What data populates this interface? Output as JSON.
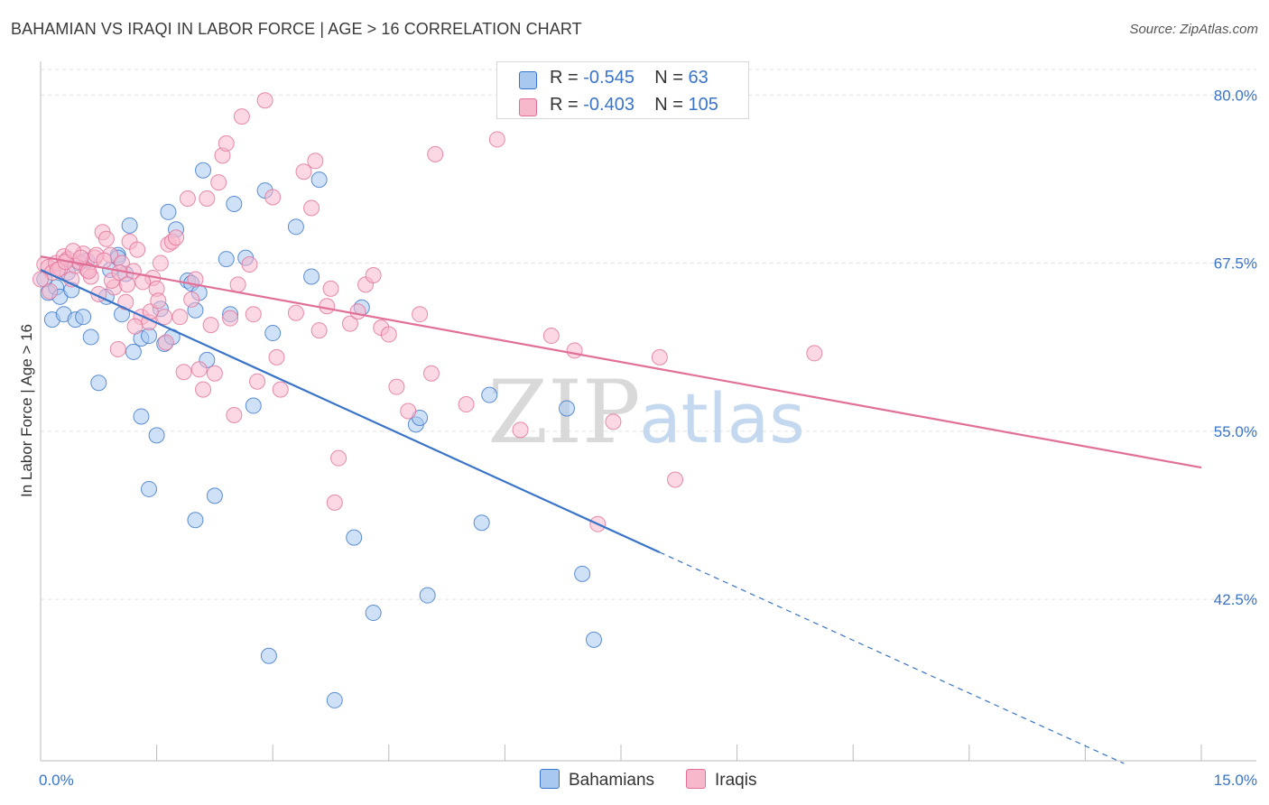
{
  "title": "BAHAMIAN VS IRAQI IN LABOR FORCE | AGE > 16 CORRELATION CHART",
  "source": "Source: ZipAtlas.com",
  "watermark": {
    "zip": "ZIP",
    "atlas": "atlas"
  },
  "legend": {
    "rows": [
      {
        "r_label": "R = ",
        "r_value": "-0.545",
        "n_label": "N = ",
        "n_value": "63",
        "color": "#a8c8f0"
      },
      {
        "r_label": "R = ",
        "r_value": "-0.403",
        "n_label": "N = ",
        "n_value": "105",
        "color": "#f8b8cc"
      }
    ]
  },
  "bottom_legend": [
    "Bahamians",
    "Iraqis"
  ],
  "chart_data": {
    "type": "scatter",
    "title": "BAHAMIAN VS IRAQI IN LABOR FORCE | AGE > 16 CORRELATION CHART",
    "xlabel": "",
    "ylabel": "In Labor Force | Age > 16",
    "xlim": [
      0,
      15
    ],
    "ylim": [
      30.5,
      82.5
    ],
    "x_tick_labels": [
      "0.0%",
      "15.0%"
    ],
    "y_ticks": [
      42.5,
      55.0,
      67.5,
      80.0
    ],
    "y_tick_labels": [
      "42.5%",
      "55.0%",
      "67.5%",
      "80.0%"
    ],
    "grid": true,
    "series": [
      {
        "name": "Bahamians",
        "color": "#a8c8f0",
        "stroke": "#3a74c8",
        "trend": {
          "x0": 0.0,
          "y0": 67.0,
          "x1": 8.0,
          "y1": 46.0,
          "dash_to_x": 14.0,
          "dash_to_y": 30.3
        },
        "points": [
          [
            0.1,
            65.3
          ],
          [
            0.15,
            63.3
          ],
          [
            0.2,
            65.7
          ],
          [
            0.25,
            65.0
          ],
          [
            0.3,
            63.7
          ],
          [
            0.35,
            66.8
          ],
          [
            0.4,
            65.5
          ],
          [
            0.45,
            63.3
          ],
          [
            0.5,
            67.5
          ],
          [
            0.55,
            63.5
          ],
          [
            0.65,
            62.0
          ],
          [
            0.75,
            58.6
          ],
          [
            0.85,
            65.0
          ],
          [
            0.9,
            67.0
          ],
          [
            1.0,
            68.1
          ],
          [
            1.0,
            67.9
          ],
          [
            1.05,
            63.7
          ],
          [
            1.1,
            66.7
          ],
          [
            1.15,
            70.3
          ],
          [
            1.2,
            60.9
          ],
          [
            1.3,
            56.1
          ],
          [
            1.3,
            61.9
          ],
          [
            1.4,
            62.1
          ],
          [
            1.4,
            50.7
          ],
          [
            1.5,
            54.7
          ],
          [
            1.55,
            64.1
          ],
          [
            1.6,
            61.5
          ],
          [
            1.7,
            62.0
          ],
          [
            1.65,
            71.3
          ],
          [
            1.75,
            70.0
          ],
          [
            1.9,
            66.2
          ],
          [
            1.95,
            66.0
          ],
          [
            2.0,
            64.0
          ],
          [
            2.0,
            48.4
          ],
          [
            2.05,
            65.3
          ],
          [
            2.1,
            74.4
          ],
          [
            2.15,
            60.3
          ],
          [
            2.25,
            50.2
          ],
          [
            2.4,
            67.8
          ],
          [
            2.45,
            63.7
          ],
          [
            2.5,
            71.9
          ],
          [
            2.65,
            67.9
          ],
          [
            2.75,
            56.9
          ],
          [
            2.9,
            72.9
          ],
          [
            2.95,
            38.3
          ],
          [
            3.0,
            62.3
          ],
          [
            3.3,
            70.2
          ],
          [
            3.5,
            66.5
          ],
          [
            3.6,
            73.7
          ],
          [
            3.8,
            35.0
          ],
          [
            4.05,
            47.1
          ],
          [
            4.15,
            64.2
          ],
          [
            4.3,
            41.5
          ],
          [
            4.85,
            55.5
          ],
          [
            4.9,
            56.0
          ],
          [
            5.0,
            42.8
          ],
          [
            5.7,
            48.2
          ],
          [
            5.8,
            57.7
          ],
          [
            6.8,
            56.7
          ],
          [
            7.0,
            44.4
          ],
          [
            7.15,
            39.5
          ],
          [
            0.05,
            66.3
          ],
          [
            0.6,
            67.7
          ]
        ]
      },
      {
        "name": "Iraqis",
        "color": "#f8b8cc",
        "stroke": "#e07098",
        "trend": {
          "x0": 0.0,
          "y0": 68.0,
          "x1": 15.0,
          "y1": 52.3
        },
        "points": [
          [
            0.05,
            67.4
          ],
          [
            0.1,
            67.2
          ],
          [
            0.15,
            66.8
          ],
          [
            0.2,
            67.5
          ],
          [
            0.25,
            67.1
          ],
          [
            0.3,
            68.0
          ],
          [
            0.35,
            67.8
          ],
          [
            0.4,
            66.3
          ],
          [
            0.45,
            67.3
          ],
          [
            0.5,
            67.6
          ],
          [
            0.55,
            68.2
          ],
          [
            0.6,
            67.0
          ],
          [
            0.65,
            66.5
          ],
          [
            0.7,
            67.9
          ],
          [
            0.75,
            65.2
          ],
          [
            0.8,
            69.8
          ],
          [
            0.85,
            69.3
          ],
          [
            0.9,
            68.1
          ],
          [
            0.95,
            65.7
          ],
          [
            1.0,
            61.1
          ],
          [
            1.05,
            67.5
          ],
          [
            1.1,
            64.6
          ],
          [
            1.15,
            69.1
          ],
          [
            1.2,
            66.9
          ],
          [
            1.25,
            68.5
          ],
          [
            1.3,
            63.5
          ],
          [
            1.4,
            63.1
          ],
          [
            1.45,
            66.4
          ],
          [
            1.5,
            65.6
          ],
          [
            1.55,
            67.5
          ],
          [
            1.6,
            63.5
          ],
          [
            1.65,
            68.9
          ],
          [
            1.7,
            69.1
          ],
          [
            1.75,
            69.4
          ],
          [
            1.8,
            63.5
          ],
          [
            1.85,
            59.4
          ],
          [
            1.9,
            72.3
          ],
          [
            1.95,
            64.8
          ],
          [
            2.0,
            66.3
          ],
          [
            2.05,
            59.6
          ],
          [
            2.1,
            58.1
          ],
          [
            2.15,
            72.3
          ],
          [
            2.2,
            62.9
          ],
          [
            2.25,
            59.3
          ],
          [
            2.3,
            73.5
          ],
          [
            2.35,
            75.5
          ],
          [
            2.4,
            76.4
          ],
          [
            2.45,
            63.4
          ],
          [
            2.5,
            56.2
          ],
          [
            2.55,
            65.9
          ],
          [
            2.6,
            78.4
          ],
          [
            2.7,
            67.4
          ],
          [
            2.75,
            63.7
          ],
          [
            2.8,
            58.7
          ],
          [
            2.9,
            79.6
          ],
          [
            3.0,
            72.4
          ],
          [
            3.05,
            60.5
          ],
          [
            3.1,
            58.1
          ],
          [
            3.3,
            63.8
          ],
          [
            3.4,
            74.3
          ],
          [
            3.5,
            71.6
          ],
          [
            3.55,
            75.1
          ],
          [
            3.6,
            62.5
          ],
          [
            3.7,
            64.3
          ],
          [
            3.75,
            65.6
          ],
          [
            3.8,
            49.7
          ],
          [
            3.85,
            53.0
          ],
          [
            4.0,
            63.0
          ],
          [
            4.1,
            63.9
          ],
          [
            4.2,
            65.9
          ],
          [
            4.3,
            66.6
          ],
          [
            4.4,
            62.7
          ],
          [
            4.5,
            62.2
          ],
          [
            4.6,
            58.3
          ],
          [
            4.75,
            56.5
          ],
          [
            4.9,
            63.7
          ],
          [
            5.05,
            59.3
          ],
          [
            5.1,
            75.6
          ],
          [
            5.5,
            57.0
          ],
          [
            5.9,
            76.7
          ],
          [
            6.2,
            55.1
          ],
          [
            6.6,
            62.1
          ],
          [
            6.9,
            61.0
          ],
          [
            7.2,
            48.1
          ],
          [
            7.4,
            55.7
          ],
          [
            8.0,
            60.5
          ],
          [
            8.2,
            51.4
          ],
          [
            10.0,
            60.8
          ],
          [
            0.0,
            66.3
          ],
          [
            0.12,
            65.4
          ],
          [
            0.22,
            67.0
          ],
          [
            0.32,
            67.6
          ],
          [
            0.42,
            68.4
          ],
          [
            0.52,
            67.9
          ],
          [
            0.62,
            66.9
          ],
          [
            0.72,
            68.1
          ],
          [
            0.82,
            67.7
          ],
          [
            0.92,
            66.2
          ],
          [
            1.02,
            66.8
          ],
          [
            1.12,
            65.9
          ],
          [
            1.22,
            62.8
          ],
          [
            1.32,
            66.1
          ],
          [
            1.42,
            63.9
          ],
          [
            1.52,
            64.7
          ],
          [
            1.62,
            61.6
          ]
        ]
      }
    ]
  }
}
